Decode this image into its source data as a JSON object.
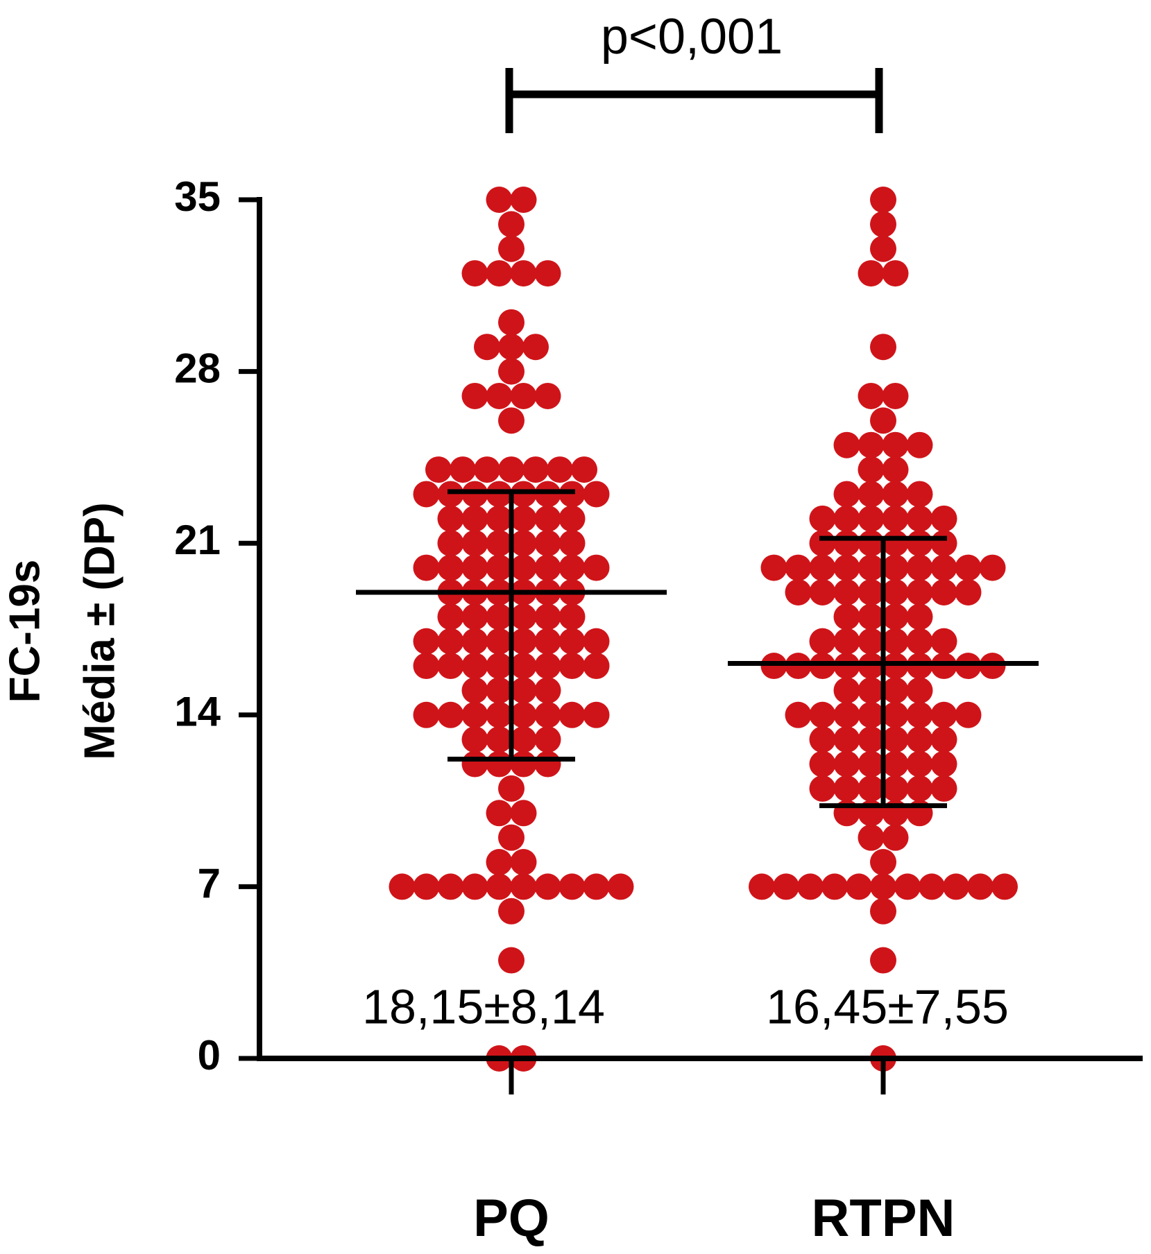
{
  "chart_data": {
    "type": "dot",
    "ylabel_lines": [
      "FC-19s",
      "Média ± (DP)"
    ],
    "annotation": "p<0,001",
    "categories": [
      "PQ",
      "RTPN"
    ],
    "color": "#cf1419",
    "ylim": [
      0,
      35
    ],
    "yticks": [
      0,
      7,
      14,
      21,
      28,
      35
    ],
    "groups": [
      {
        "label": "18,15±8,14",
        "mean": 19,
        "whisker_low": 12.2,
        "whisker_high": 23.1,
        "values": [
          35,
          35,
          34,
          33,
          32,
          32,
          32,
          32,
          30,
          29,
          29,
          29,
          28,
          27,
          27,
          27,
          27,
          26,
          24,
          24,
          24,
          24,
          24,
          24,
          24,
          23,
          23,
          23,
          23,
          23,
          23,
          23,
          23,
          22,
          22,
          22,
          22,
          22,
          22,
          21,
          21,
          21,
          21,
          21,
          21,
          20,
          20,
          20,
          20,
          20,
          20,
          20,
          20,
          19,
          19,
          19,
          19,
          19,
          19,
          18,
          18,
          18,
          18,
          18,
          18,
          17,
          17,
          17,
          17,
          17,
          17,
          17,
          17,
          16,
          16,
          16,
          16,
          16,
          16,
          16,
          16,
          15,
          15,
          15,
          15,
          14,
          14,
          14,
          14,
          14,
          14,
          14,
          14,
          13,
          13,
          13,
          13,
          12,
          12,
          12,
          12,
          11,
          10,
          10,
          9,
          8,
          8,
          7,
          7,
          7,
          7,
          7,
          7,
          7,
          7,
          7,
          7,
          6,
          4,
          0,
          0
        ]
      },
      {
        "label": "16,45±7,55",
        "mean": 16.1,
        "whisker_low": 10.3,
        "whisker_high": 21.2,
        "values": [
          35,
          34,
          33,
          32,
          32,
          29,
          27,
          27,
          26,
          25,
          25,
          25,
          25,
          24,
          24,
          23,
          23,
          23,
          23,
          22,
          22,
          22,
          22,
          22,
          22,
          21,
          21,
          21,
          21,
          21,
          21,
          20,
          20,
          20,
          20,
          20,
          20,
          20,
          20,
          20,
          20,
          19,
          19,
          19,
          19,
          19,
          19,
          19,
          19,
          18,
          18,
          18,
          18,
          17,
          17,
          17,
          17,
          17,
          17,
          16,
          16,
          16,
          16,
          16,
          16,
          16,
          16,
          16,
          16,
          15,
          15,
          15,
          15,
          14,
          14,
          14,
          14,
          14,
          14,
          14,
          14,
          13,
          13,
          13,
          13,
          13,
          13,
          12,
          12,
          12,
          12,
          12,
          12,
          11,
          11,
          11,
          11,
          11,
          11,
          10,
          10,
          10,
          10,
          9,
          9,
          8,
          7,
          7,
          7,
          7,
          7,
          7,
          7,
          7,
          7,
          7,
          7,
          6,
          4,
          0
        ]
      }
    ]
  }
}
